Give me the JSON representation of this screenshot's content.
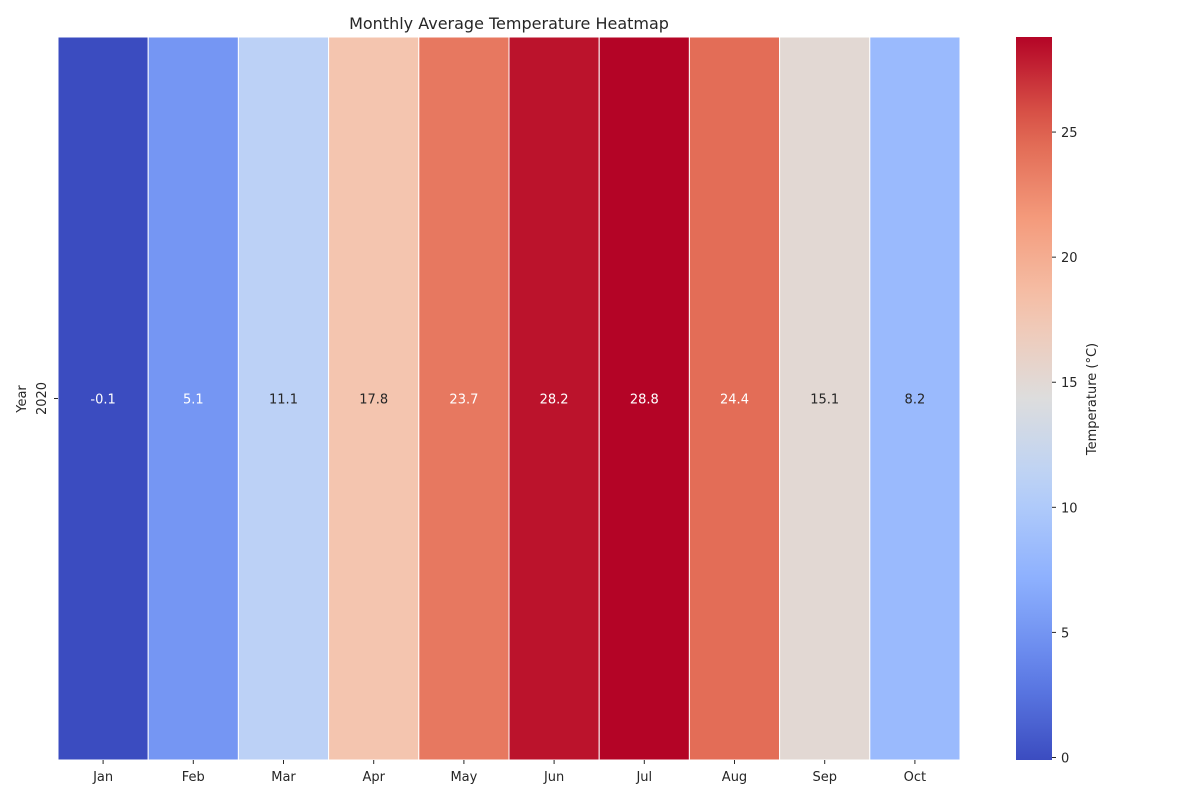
{
  "chart_data": {
    "type": "heatmap",
    "title": "Monthly Average Temperature Heatmap",
    "xlabel": "",
    "ylabel": "Year",
    "x": [
      "Jan",
      "Feb",
      "Mar",
      "Apr",
      "May",
      "Jun",
      "Jul",
      "Aug",
      "Sep",
      "Oct"
    ],
    "y": [
      "2020"
    ],
    "values": [
      [
        -0.1,
        5.1,
        11.1,
        17.8,
        23.7,
        28.2,
        28.8,
        24.4,
        15.1,
        8.2
      ]
    ],
    "colormap": "coolwarm",
    "value_range": [
      -0.1,
      28.8
    ],
    "annotated": true,
    "colorbar": {
      "label": "Temperature (°C)",
      "ticks": [
        0,
        5,
        10,
        15,
        20,
        25
      ]
    },
    "grid": false
  }
}
